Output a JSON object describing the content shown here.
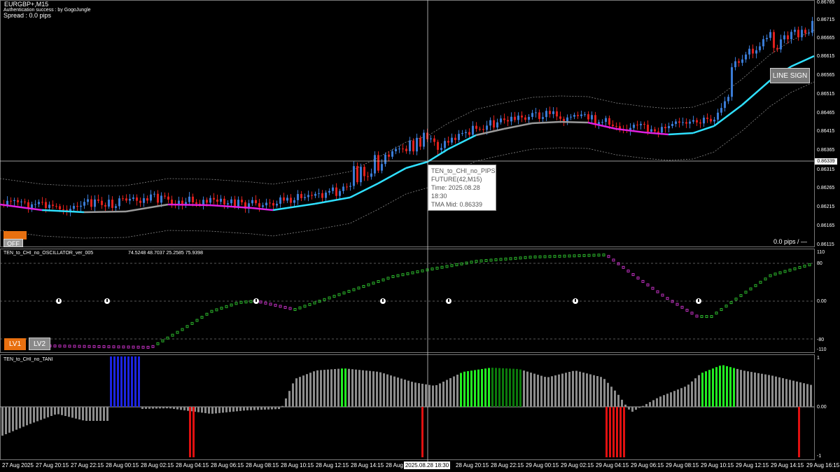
{
  "window": {
    "symbol_title": "EURGBP+,M15",
    "auth_text": "Authentication success : by GogoJungle",
    "spread_text": "Spread : 0.0 pips"
  },
  "main_panel": {
    "pips_text": "0.0 pips / —",
    "buttons": {
      "off": "OFF",
      "line_sign": "LINE SIGN"
    },
    "y_labels": [
      "0.86765",
      "0.86715",
      "0.86665",
      "0.86615",
      "0.86565",
      "0.86515",
      "0.86465",
      "0.86415",
      "0.86365",
      "0.86315",
      "0.86265",
      "0.86215",
      "0.86165",
      "0.86115"
    ],
    "current_price": "0.86339",
    "tooltip": {
      "line1": "TEN_to_CHI_no_PIPS",
      "line2": "FUTURE(42,M15)",
      "line3": "Time: 2025.08.28 18:30",
      "line4": "TMA Mid: 0.86339"
    }
  },
  "oscillator_panel": {
    "name": "TEN_to_CHI_no_OSCILLATOR_ver_005",
    "values": "74.5248 48.7037 25.2585 75.9398",
    "y_labels": [
      "110",
      "80",
      "0.00",
      "-80",
      "-110"
    ],
    "buttons": {
      "lv1": "LV1",
      "lv2": "LV2"
    }
  },
  "tani_panel": {
    "name": "TEN_to_CHI_no_TANI",
    "y_labels": [
      "1",
      "0.00",
      "-1"
    ]
  },
  "time_axis": {
    "labels": [
      "27 Aug 2025",
      "27 Aug 20:15",
      "27 Aug 22:15",
      "28 Aug 00:15",
      "28 Aug 02:15",
      "28 Aug 04:15",
      "28 Aug 06:15",
      "28 Aug 08:15",
      "28 Aug 10:15",
      "28 Aug 12:15",
      "28 Aug 14:15",
      "28 Aug",
      "28 Aug 20:15",
      "28 Aug 22:15",
      "29 Aug 00:15",
      "29 Aug 02:15",
      "29 Aug 04:15",
      "29 Aug 06:15",
      "29 Aug 08:15",
      "29 Aug 10:15",
      "29 Aug 12:15",
      "29 Aug 14:15",
      "29 Aug 16:15"
    ],
    "crosshair_time": "2025.08.28 18:30"
  },
  "colors": {
    "bull": "#3a7bd5",
    "bear": "#e0201c",
    "tma_up": "#2fe0ff",
    "tma_down": "#e020e0",
    "osc_up": "#2bb52b",
    "osc_down": "#c030c0",
    "hist_gray": "#8c8c8c",
    "hist_blue": "#1c24e0",
    "hist_red": "#e01010",
    "hist_bright_green": "#22ee22",
    "hist_dark_green": "#0b7a0b",
    "button_orange": "#e87010"
  }
}
